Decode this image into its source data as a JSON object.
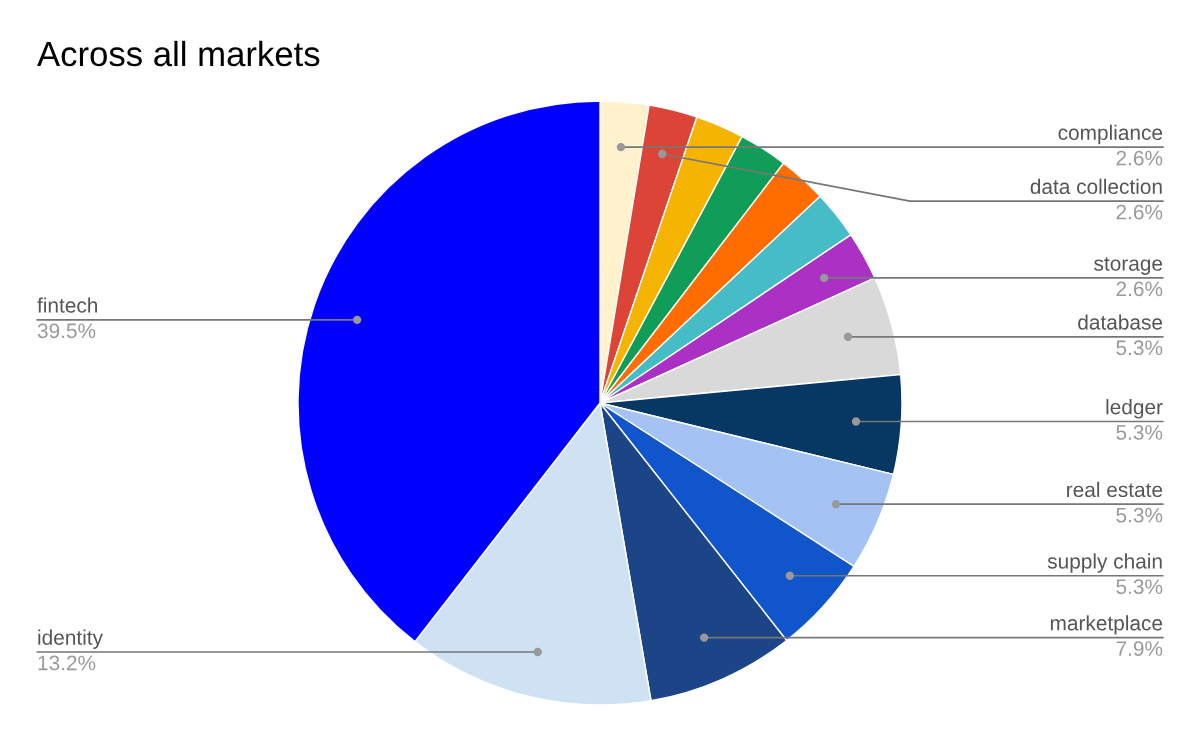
{
  "chart_data": {
    "type": "pie",
    "title": "Across all markets",
    "categories": [
      "compliance",
      "data collection",
      null,
      null,
      null,
      null,
      "storage",
      "database",
      "ledger",
      "real estate",
      "supply chain",
      "marketplace",
      "identity",
      "fintech"
    ],
    "values": [
      2.6,
      2.6,
      2.6,
      2.6,
      2.6,
      2.6,
      2.6,
      5.3,
      5.3,
      5.3,
      5.3,
      7.9,
      13.2,
      39.5
    ],
    "value_labels": [
      "2.6%",
      "2.6%",
      null,
      null,
      null,
      null,
      "2.6%",
      "5.3%",
      "5.3%",
      "5.3%",
      "5.3%",
      "7.9%",
      "13.2%",
      "39.5%"
    ],
    "colors": [
      "#fff2cc",
      "#db4437",
      "#f4b400",
      "#0f9d58",
      "#ff6d00",
      "#46bdc6",
      "#ab30c4",
      "#d9d9d9",
      "#073763",
      "#a4c2f4",
      "#1155cc",
      "#1c4587",
      "#cfe2f3",
      "#0000ff"
    ],
    "legend": false
  }
}
